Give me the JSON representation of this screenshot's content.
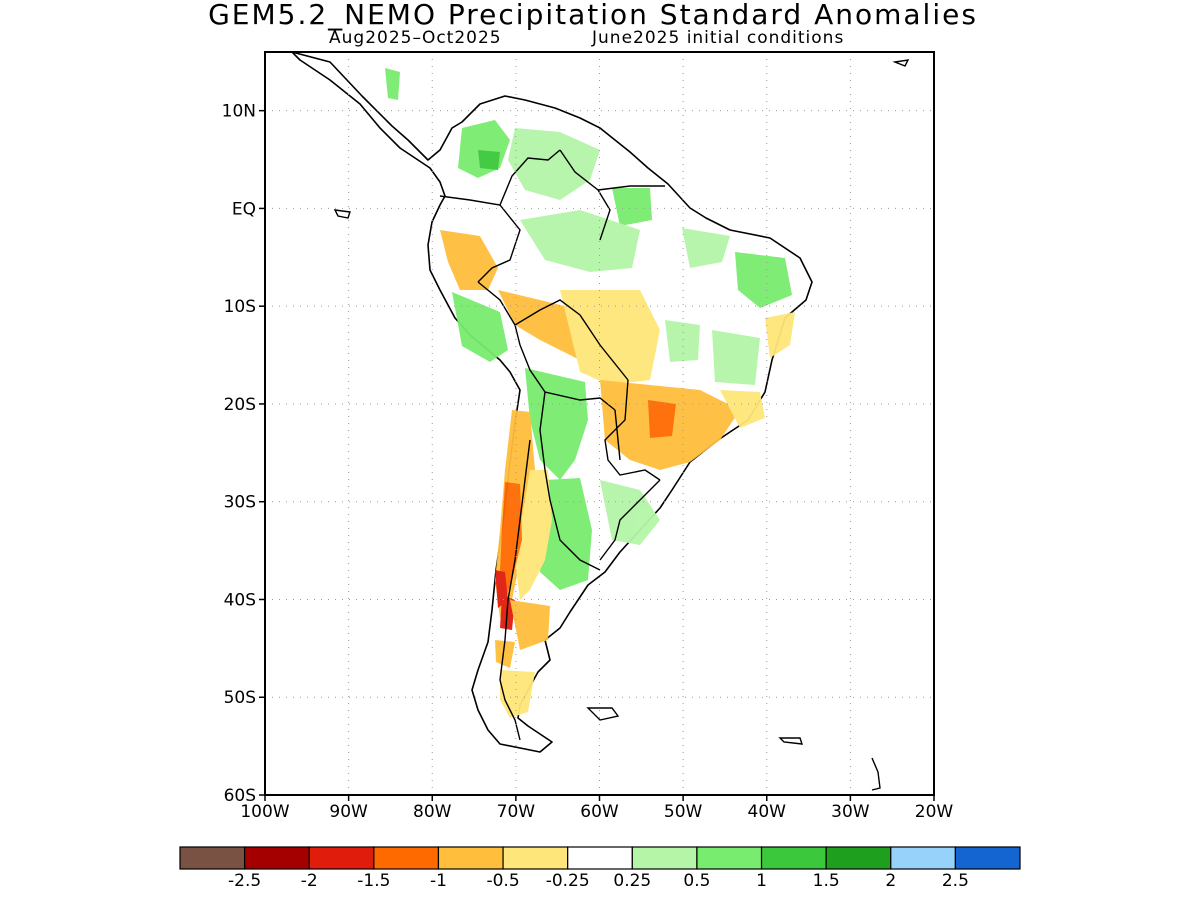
{
  "title": "GEM5.2_NEMO Precipitation Standard Anomalies",
  "subtitle_left": "Aug2025–Oct2025",
  "subtitle_right": "June2025 initial conditions",
  "map": {
    "lon_range": [
      -100,
      -20
    ],
    "lat_range": [
      -60,
      16
    ],
    "lat_ticks": [
      {
        "value": 10,
        "label": "10N"
      },
      {
        "value": 0,
        "label": "EQ"
      },
      {
        "value": -10,
        "label": "10S"
      },
      {
        "value": -20,
        "label": "20S"
      },
      {
        "value": -30,
        "label": "30S"
      },
      {
        "value": -40,
        "label": "40S"
      },
      {
        "value": -50,
        "label": "50S"
      },
      {
        "value": -60,
        "label": "60S"
      }
    ],
    "lon_ticks": [
      {
        "value": -100,
        "label": "100W"
      },
      {
        "value": -90,
        "label": "90W"
      },
      {
        "value": -80,
        "label": "80W"
      },
      {
        "value": -70,
        "label": "70W"
      },
      {
        "value": -60,
        "label": "60W"
      },
      {
        "value": -50,
        "label": "50W"
      },
      {
        "value": -40,
        "label": "40W"
      },
      {
        "value": -30,
        "label": "30W"
      },
      {
        "value": -20,
        "label": "20W"
      }
    ]
  },
  "colorbar": {
    "colors": [
      "#7a5244",
      "#a50000",
      "#e01c0c",
      "#ff6a00",
      "#ffbe3c",
      "#ffe67a",
      "#ffffff",
      "#b4f5a8",
      "#78ec6e",
      "#3cc83c",
      "#1ea01e",
      "#96d2fa",
      "#1464d2"
    ],
    "labels": [
      "-2.5",
      "-2",
      "-1.5",
      "-1",
      "-0.5",
      "-0.25",
      "0.25",
      "0.5",
      "1",
      "1.5",
      "2",
      "2.5"
    ]
  }
}
